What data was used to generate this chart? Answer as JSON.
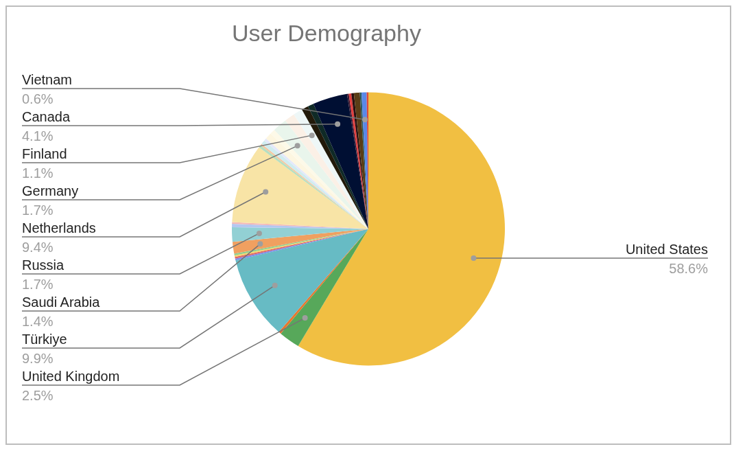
{
  "chart_data": {
    "type": "pie",
    "title": "User Demography",
    "categories": [
      "United States",
      "United Kingdom",
      null,
      "Türkiye",
      null,
      null,
      null,
      null,
      "Saudi Arabia",
      "Russia",
      null,
      null,
      "Netherlands",
      null,
      null,
      null,
      null,
      null,
      null,
      "Germany",
      null,
      "Finland",
      null,
      null,
      "Canada",
      null,
      null,
      null,
      null,
      null,
      "Vietnam",
      null
    ],
    "values": [
      58.6,
      2.5,
      0.3,
      9.9,
      0.2,
      0.2,
      0.2,
      0.2,
      1.4,
      1.7,
      0.4,
      0.2,
      9.4,
      0.3,
      0.2,
      0.5,
      0.3,
      0.8,
      0.6,
      1.7,
      1.2,
      1.1,
      0.8,
      0.7,
      4.1,
      0.2,
      0.3,
      0.3,
      0.7,
      0.2,
      0.6,
      0.2
    ],
    "colors": [
      "#f1bf42",
      "#57a85a",
      "#e8772e",
      "#67bbc4",
      "#7b8ce8",
      "#e06666",
      "#f5d56a",
      "#8fce8f",
      "#f0a060",
      "#92d0d4",
      "#b4c7f0",
      "#f2b8b8",
      "#f8e4a6",
      "#b7dfc0",
      "#f6c6a0",
      "#d0ecef",
      "#e4e8fa",
      "#fdf6e0",
      "#fdf9e8",
      "#e9f5ec",
      "#fbf0e6",
      "#eef7f7",
      "#221a0a",
      "#0f2a26",
      "#000f33",
      "#3a1830",
      "#e23e3e",
      "#2a1010",
      "#5a3d16",
      "#2a5a60",
      "#5a88e8",
      "#dc4a3a"
    ],
    "value_labels": [
      "58.6%",
      "2.5%",
      null,
      "9.9%",
      null,
      null,
      null,
      null,
      "1.4%",
      "1.7%",
      null,
      null,
      "9.4%",
      null,
      null,
      null,
      null,
      null,
      null,
      "1.7%",
      null,
      "1.1%",
      null,
      null,
      "4.1%",
      null,
      null,
      null,
      null,
      null,
      "0.6%",
      null
    ],
    "legend": false
  }
}
